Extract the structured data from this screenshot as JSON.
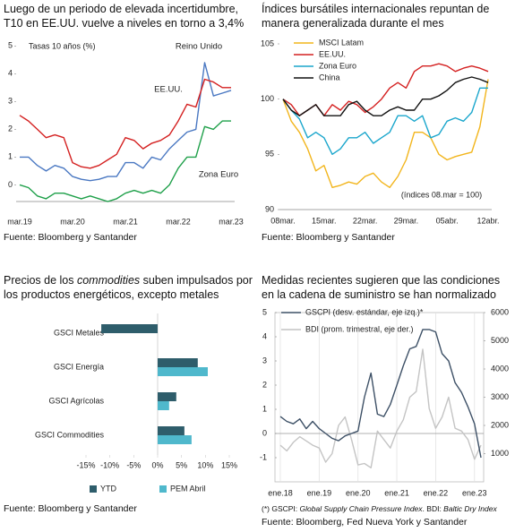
{
  "chart_data": [
    {
      "type": "line",
      "title": "Luego de un periodo de elevada incertidumbre, T10 en EE.UU. vuelve a niveles en torno a 3,4%",
      "annotation": "Tasas 10 años (%)",
      "categories": [
        "mar.19",
        null,
        null,
        null,
        null,
        null,
        "mar.20",
        null,
        null,
        null,
        null,
        null,
        "mar.21",
        null,
        null,
        null,
        null,
        null,
        "mar.22",
        null,
        null,
        null,
        null,
        null,
        "mar.23"
      ],
      "series": [
        {
          "name": "Reino Unido",
          "color": "#4a78c2",
          "values": [
            1.0,
            1.0,
            0.7,
            0.5,
            0.7,
            0.6,
            0.3,
            0.2,
            0.15,
            0.2,
            0.3,
            0.3,
            0.8,
            0.8,
            0.6,
            1.0,
            0.9,
            1.3,
            1.6,
            1.9,
            2.0,
            4.4,
            3.2,
            3.3,
            3.4
          ]
        },
        {
          "name": "EE.UU.",
          "color": "#d42020",
          "values": [
            2.5,
            2.3,
            2.0,
            1.7,
            1.8,
            1.7,
            0.8,
            0.65,
            0.6,
            0.7,
            0.9,
            1.1,
            1.7,
            1.6,
            1.3,
            1.5,
            1.6,
            1.8,
            2.3,
            2.9,
            2.8,
            3.8,
            3.7,
            3.5,
            3.5
          ]
        },
        {
          "name": "Zona Euro",
          "color": "#1fa04a",
          "values": [
            0.0,
            -0.1,
            -0.4,
            -0.5,
            -0.3,
            -0.3,
            -0.4,
            -0.5,
            -0.4,
            -0.5,
            -0.6,
            -0.5,
            -0.3,
            -0.2,
            -0.3,
            -0.2,
            -0.3,
            0.0,
            0.6,
            1.0,
            1.0,
            2.1,
            2.0,
            2.3,
            2.3
          ]
        }
      ],
      "ylim": [
        -0.6,
        5.3
      ],
      "yticks": [
        0,
        1,
        2,
        3,
        4,
        5
      ],
      "source": "Fuente: Bloomberg y Santander"
    },
    {
      "type": "line",
      "title": "Índices bursátiles internacionales repuntan de manera generalizada durante el mes",
      "annotation": "(índices 08.mar = 100)",
      "categories": [
        "08mar.",
        null,
        null,
        null,
        null,
        "15mar.",
        null,
        null,
        null,
        null,
        "22mar.",
        null,
        null,
        null,
        null,
        "29mar.",
        null,
        null,
        null,
        null,
        "05abr.",
        null,
        null,
        null,
        null,
        "12abr."
      ],
      "series": [
        {
          "name": "MSCI Latam",
          "color": "#f2b51c",
          "values": [
            100,
            98,
            97,
            95.5,
            93.5,
            94,
            92,
            92.2,
            92.5,
            92.3,
            93,
            93.3,
            92.5,
            92,
            93,
            94.5,
            97,
            97,
            96.5,
            95,
            94.5,
            94.8,
            95,
            95.2,
            97.5,
            101.8
          ]
        },
        {
          "name": "EE.UU.",
          "color": "#d42020",
          "values": [
            100,
            99.5,
            98.5,
            99,
            99.5,
            98.5,
            99.5,
            99,
            99.8,
            99.5,
            98.8,
            99.3,
            100,
            101,
            101.5,
            101,
            102.5,
            103,
            103,
            103.2,
            103,
            102.5,
            102.8,
            103,
            102.8,
            102.5
          ]
        },
        {
          "name": "Zona Euro",
          "color": "#1aa6cc",
          "values": [
            100,
            99,
            98.2,
            96.5,
            97,
            96.5,
            95,
            95.5,
            96.5,
            96.5,
            97,
            96,
            96.5,
            97,
            98.5,
            98.5,
            98,
            98.5,
            96.5,
            96.8,
            98,
            98.3,
            98,
            98.8,
            101,
            101
          ]
        },
        {
          "name": "China",
          "color": "#111111",
          "values": [
            100,
            99,
            98.5,
            99,
            99.5,
            98.5,
            98.5,
            98.5,
            99.5,
            99.8,
            99,
            98.5,
            98.5,
            99,
            99.3,
            99,
            99,
            100,
            100,
            100.3,
            100.8,
            101.5,
            101.8,
            102,
            101.8,
            101.5
          ]
        }
      ],
      "ylim": [
        90,
        105
      ],
      "yticks": [
        90,
        95,
        100,
        105
      ],
      "source": "Fuente: Bloomberg y Santander"
    },
    {
      "type": "bar",
      "orientation": "horizontal",
      "title": [
        "Precios de los ",
        "commodities",
        " suben impulsados por los productos energéticos, excepto metales"
      ],
      "categories": [
        "GSCI Metales",
        "GSCI Energía",
        "GSCI Agrícolas",
        "GSCI Commodities"
      ],
      "series": [
        {
          "name": "YTD",
          "color": "#2e5d6b",
          "values": [
            -11.8,
            8.4,
            3.9,
            5.6
          ]
        },
        {
          "name": "PEM Abril",
          "color": "#4fb8cc",
          "values": [
            null,
            10.5,
            2.4,
            7.1
          ]
        }
      ],
      "xlim": [
        -15,
        15
      ],
      "xticks": [
        {
          "value": -15,
          "label": "-15%"
        },
        {
          "value": -10,
          "label": "-10%"
        },
        {
          "value": -5,
          "label": "-5%"
        },
        {
          "value": 0,
          "label": "0%"
        },
        {
          "value": 5,
          "label": "5%"
        },
        {
          "value": 10,
          "label": "10%"
        },
        {
          "value": 15,
          "label": "15%"
        }
      ],
      "legend": "bottom",
      "source": "Fuente: Bloomberg y Santander"
    },
    {
      "type": "line",
      "title": "Medidas recientes sugieren que las condiciones en la cadena de suministro se han normalizado",
      "categories": [
        "ene.18",
        null,
        null,
        null,
        null,
        null,
        "ene.19",
        null,
        null,
        null,
        null,
        null,
        "ene.20",
        null,
        null,
        null,
        null,
        null,
        "ene.21",
        null,
        null,
        null,
        null,
        null,
        "ene.22",
        null,
        null,
        null,
        null,
        null,
        "ene.23",
        null
      ],
      "series": [
        {
          "name": "GSCPI (desv. estándar, eje izq.)*",
          "color": "#3d5066",
          "values": [
            0.7,
            0.5,
            0.4,
            0.6,
            0.2,
            0.5,
            0.2,
            0.0,
            -0.2,
            -0.3,
            -0.1,
            0.0,
            0.1,
            1.5,
            2.5,
            0.8,
            0.7,
            1.2,
            2.0,
            2.8,
            3.5,
            3.6,
            4.3,
            4.3,
            4.2,
            3.3,
            3.0,
            2.1,
            1.7,
            1.1,
            0.4,
            -1.0
          ]
        },
        {
          "name": "BDI (prom. trimestral, eje der.)",
          "color": "#c4c4c4",
          "axis": "y2",
          "values": [
            1300,
            1100,
            1400,
            1600,
            1450,
            1300,
            1200,
            700,
            1000,
            2000,
            2300,
            1500,
            600,
            650,
            500,
            1800,
            1500,
            1200,
            1800,
            2200,
            3000,
            3200,
            4700,
            2600,
            1900,
            2300,
            3000,
            1900,
            1800,
            1500,
            800,
            1300
          ]
        }
      ],
      "ylim": [
        -2,
        5
      ],
      "yticks": [
        -1,
        0,
        1,
        2,
        3,
        4,
        5
      ],
      "y2lim": [
        0,
        6000
      ],
      "y2ticks": [
        1000,
        2000,
        3000,
        4000,
        5000,
        6000
      ],
      "footnote": [
        "(*) GSCPI: ",
        "Global Supply Chain Pressure Index",
        ". BDI: ",
        "Baltic Dry Index"
      ],
      "source": "Fuente: Bloomberg, Fed Nueva York y Santander"
    }
  ]
}
